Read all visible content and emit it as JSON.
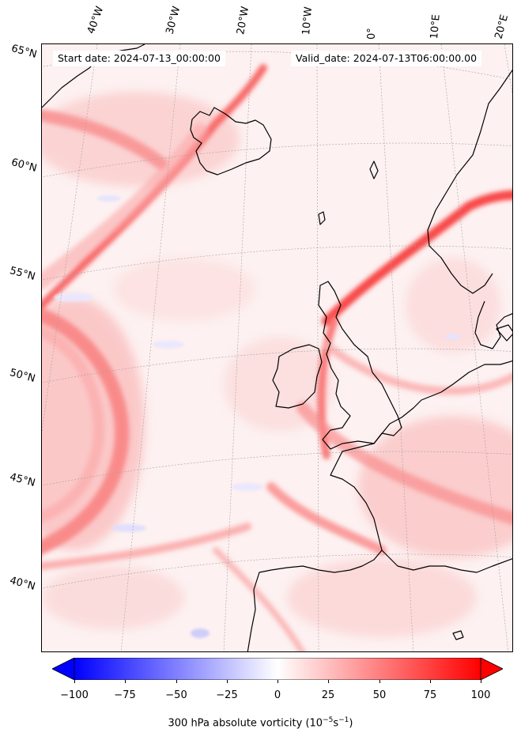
{
  "map": {
    "start_label": "Start date: 2024-07-13_00:00:00",
    "valid_label": "Valid_date: 2024-07-13T06:00:00.00",
    "lon_labels": [
      "40°W",
      "30°W",
      "20°W",
      "10°W",
      "0°",
      "10°E",
      "20°E"
    ],
    "lat_labels": [
      "65°N",
      "60°N",
      "55°N",
      "50°N",
      "45°N",
      "40°N"
    ],
    "colors": {
      "positive_max": "#ff0000",
      "negative_max": "#0000ff",
      "neutral": "#ffffff",
      "coastline": "#000000",
      "gridline": "#b0b0b0"
    }
  },
  "colorbar": {
    "ticks": [
      "−100",
      "−75",
      "−50",
      "−25",
      "0",
      "25",
      "50",
      "75",
      "100"
    ],
    "tick_values": [
      -100,
      -75,
      -50,
      -25,
      0,
      25,
      50,
      75,
      100
    ],
    "range": [
      -100,
      100
    ],
    "extend": "both",
    "label_prefix": "300 hPa absolute vorticity (10",
    "label_exp1": "−5",
    "label_mid": "s",
    "label_exp2": "−1",
    "label_suffix": ")"
  }
}
